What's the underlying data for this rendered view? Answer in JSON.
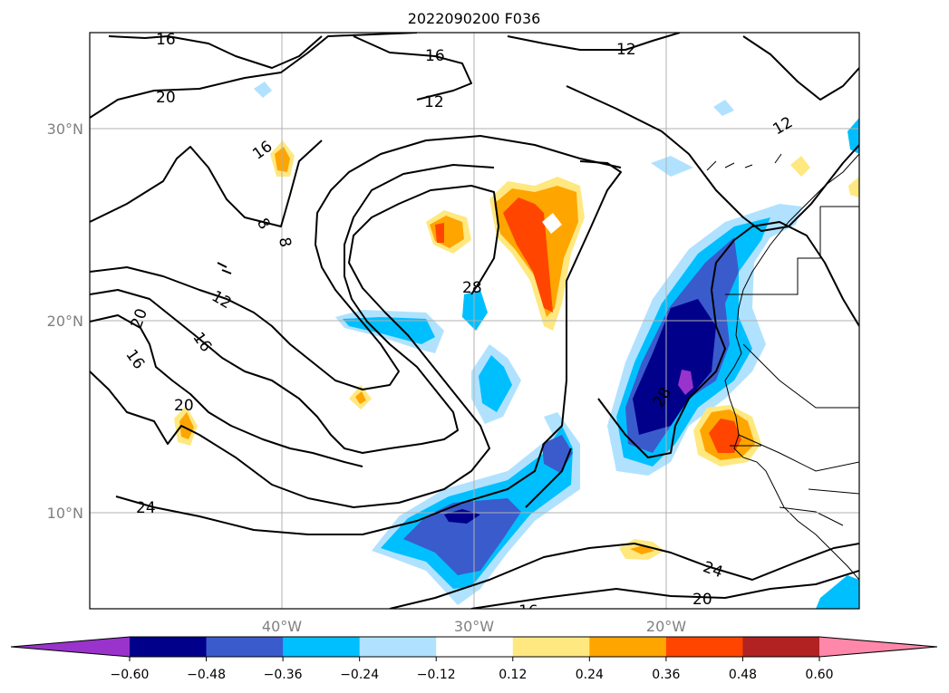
{
  "title": "2022090200 F036",
  "lon_labels": [
    "40°W",
    "30°W",
    "20°W"
  ],
  "lat_labels": [
    "30°N",
    "20°N",
    "10°N"
  ],
  "colorbar": {
    "ticks": [
      "−0.60",
      "−0.48",
      "−0.36",
      "−0.24",
      "−0.12",
      "0.12",
      "0.24",
      "0.36",
      "0.48",
      "0.60"
    ],
    "colors": [
      "#9933cc",
      "#00008b",
      "#3a5bcc",
      "#00bfff",
      "#b0e2ff",
      "#ffffff",
      "#ffe880",
      "#ffa500",
      "#ff4500",
      "#b22222",
      "#ff88aa"
    ]
  },
  "contour_labels": [
    "16",
    "16",
    "12",
    "12",
    "20",
    "16",
    "12",
    "8",
    "8",
    "12",
    "16",
    "20",
    "16",
    "28",
    "20",
    "28",
    "24",
    "24",
    "20",
    "16"
  ]
}
